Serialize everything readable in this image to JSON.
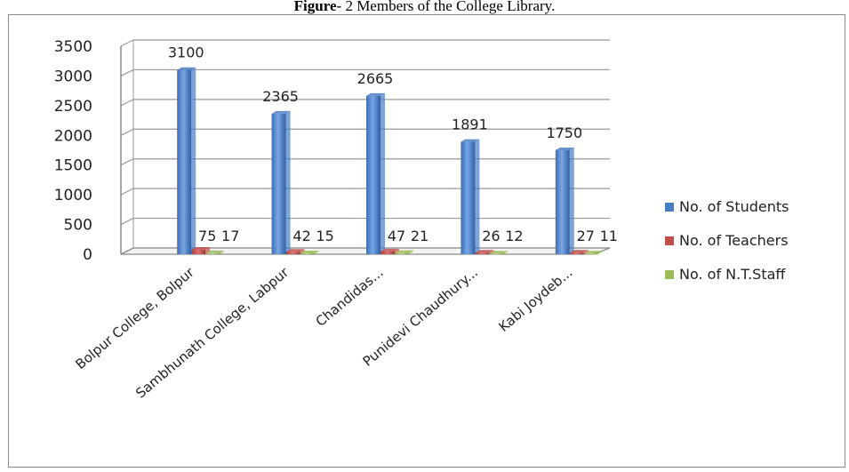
{
  "caption": {
    "prefix": "Figure",
    "rest": "- 2 Members of the College Library."
  },
  "chart_data": {
    "type": "bar",
    "title": "Figure- 2 Members of the College Library.",
    "categories": [
      "Bolpur College, Bolpur",
      "Sambhunath College, Labpur",
      "Chandidas...",
      "Punidevi Chaudhury...",
      "Kabi Joydeb..."
    ],
    "series": [
      {
        "name": "No. of Students",
        "values": [
          3100,
          2365,
          2665,
          1891,
          1750
        ],
        "color": "#4a7cc4"
      },
      {
        "name": "No. of  Teachers",
        "values": [
          75,
          42,
          47,
          26,
          27
        ],
        "color": "#c0504d"
      },
      {
        "name": "No. of  N.T.Staff",
        "values": [
          17,
          15,
          21,
          12,
          11
        ],
        "color": "#9bbb59"
      }
    ],
    "data_label_text": [
      [
        "3100",
        "75",
        "17"
      ],
      [
        "2365",
        "42",
        "15"
      ],
      [
        "2665",
        "47",
        "21"
      ],
      [
        "1891",
        "26",
        "12"
      ],
      [
        "1750",
        "27",
        "11"
      ]
    ],
    "yticks": [
      0,
      500,
      1000,
      1500,
      2000,
      2500,
      3000,
      3500
    ],
    "ylim": [
      0,
      3500
    ],
    "grid": true,
    "legend_position": "right",
    "style": "3d-column"
  }
}
